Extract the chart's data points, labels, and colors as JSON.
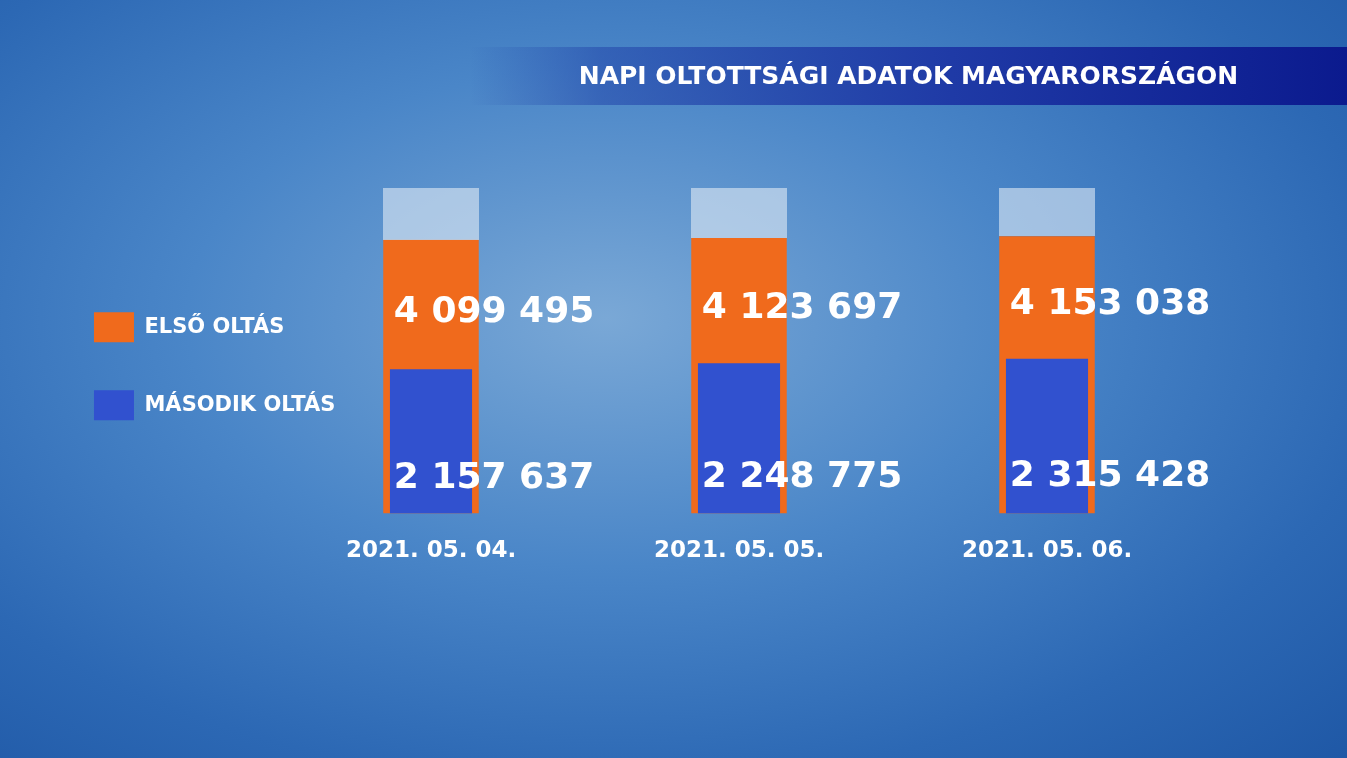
{
  "chart_data": {
    "type": "bar",
    "title": "NAPI OLTOTTSÁGI ADATOK MAGYARORSZÁGON",
    "categories": [
      "2021. 05. 04.",
      "2021. 05. 05.",
      "2021. 05. 06."
    ],
    "series": [
      {
        "name": "ELSŐ OLTÁS",
        "color": "#f06a1c",
        "values": [
          4099495,
          4123697,
          4153038
        ],
        "value_labels": [
          "4 099 495",
          "4 123 697",
          "4 153 038"
        ]
      },
      {
        "name": "MÁSODIK OLTÁS",
        "color": "#3151cf",
        "values": [
          2157637,
          2248775,
          2315428
        ],
        "value_labels": [
          "2 157 637",
          "2 248 775",
          "2 315 428"
        ]
      }
    ],
    "legend": "left",
    "tick_labels": "x"
  }
}
